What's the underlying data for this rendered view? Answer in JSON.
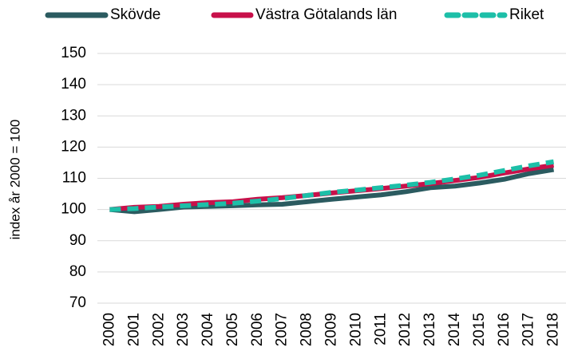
{
  "chart_data": {
    "type": "line",
    "y_label": "index år 2000 = 100",
    "categories": [
      "2000",
      "2001",
      "2002",
      "2003",
      "2004",
      "2005",
      "2006",
      "2007",
      "2008",
      "2009",
      "2010",
      "2011",
      "2012",
      "2013",
      "2014",
      "2015",
      "2016",
      "2017",
      "2018"
    ],
    "series": [
      {
        "name": "Skövde",
        "color": "#2b5b60",
        "dashed": false,
        "values": [
          100,
          99.3,
          100,
          100.8,
          101,
          101.2,
          101.5,
          101.7,
          102.5,
          103.3,
          104,
          104.7,
          105.7,
          107,
          107.5,
          108.5,
          109.7,
          111.5,
          112.8
        ]
      },
      {
        "name": "Västra Götalands län",
        "color": "#c8104a",
        "dashed": false,
        "values": [
          100,
          100.7,
          101,
          101.7,
          102.2,
          102.5,
          103.3,
          103.8,
          104.5,
          105.3,
          106,
          106.7,
          107.5,
          108.3,
          109.3,
          110.3,
          111.7,
          113,
          114.2
        ]
      },
      {
        "name": "Riket",
        "color": "#1dbfa8",
        "dashed": true,
        "values": [
          100,
          100.3,
          100.8,
          101.2,
          101.6,
          102,
          102.7,
          103.5,
          104.5,
          105.5,
          106.2,
          107,
          107.8,
          108.7,
          109.8,
          111,
          112.5,
          114,
          115.3
        ]
      }
    ],
    "ylim": [
      70,
      150
    ],
    "yticks": [
      70,
      80,
      90,
      100,
      110,
      120,
      130,
      140,
      150
    ],
    "grid": true,
    "legend": "top"
  }
}
